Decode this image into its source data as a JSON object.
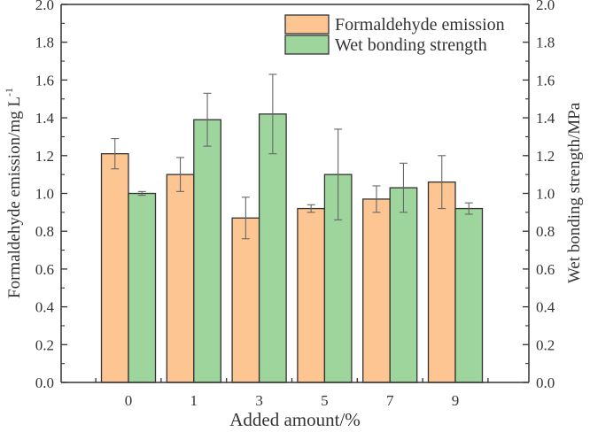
{
  "chart_data": {
    "type": "bar",
    "title": "",
    "xlabel": "Added amount/%",
    "ylabel": "Formaldehyde emission/mg L",
    "ylabel_superscript": "-1",
    "y2label": "Wet bonding strength/MPa",
    "ylim": [
      0,
      2.0
    ],
    "y2lim": [
      0,
      2.0
    ],
    "yticks": [
      "0.0",
      "0.2",
      "0.4",
      "0.6",
      "0.8",
      "1.0",
      "1.2",
      "1.4",
      "1.6",
      "1.8",
      "2.0"
    ],
    "categories": [
      "0",
      "1",
      "3",
      "5",
      "7",
      "9"
    ],
    "legend_position": "top-right",
    "grid": false,
    "series": [
      {
        "name": "Formaldehyde emission",
        "axis": "left",
        "color": "#FDC592",
        "values": [
          1.21,
          1.1,
          0.87,
          0.92,
          0.97,
          1.06
        ],
        "errors": [
          0.08,
          0.09,
          0.11,
          0.02,
          0.07,
          0.14
        ]
      },
      {
        "name": "Wet bonding strength",
        "axis": "right",
        "color": "#9ED59C",
        "values": [
          1.0,
          1.39,
          1.42,
          1.1,
          1.03,
          0.92
        ],
        "errors": [
          0.01,
          0.14,
          0.21,
          0.24,
          0.13,
          0.03
        ]
      }
    ]
  }
}
